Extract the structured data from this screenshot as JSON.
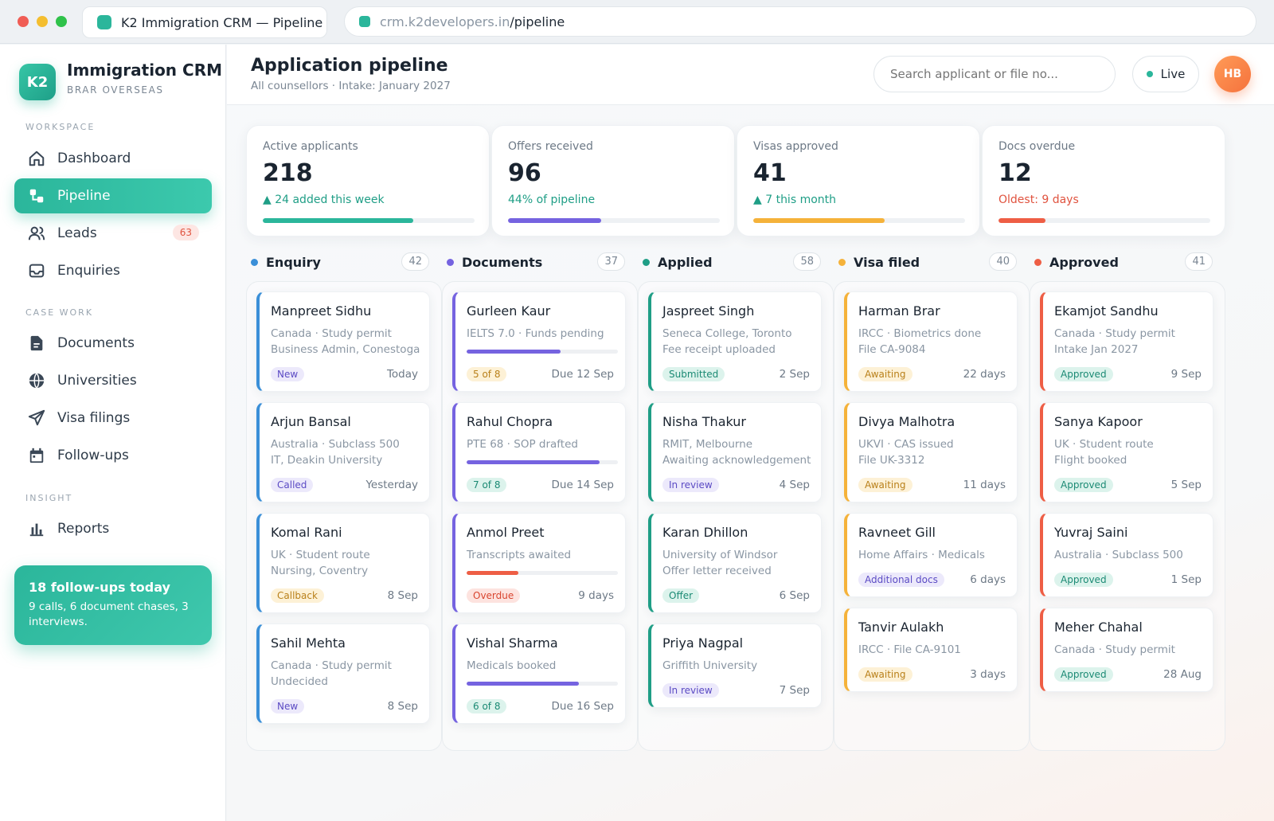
{
  "browser": {
    "tab_title": "K2 Immigration CRM — Pipeline",
    "url_host": "crm.k2developers.in",
    "url_path": "/pipeline"
  },
  "sidebar": {
    "logo": "K2",
    "brand": "Immigration CRM",
    "brand_sub": "BRAR OVERSEAS",
    "sections": {
      "workspace": "WORKSPACE",
      "case_work": "CASE WORK",
      "insight": "INSIGHT"
    },
    "items": [
      {
        "label": "Dashboard",
        "icon": "home-icon"
      },
      {
        "label": "Pipeline",
        "icon": "pipeline-icon",
        "active": true
      },
      {
        "label": "Leads",
        "icon": "users-icon",
        "badge": "63"
      },
      {
        "label": "Enquiries",
        "icon": "inbox-icon"
      },
      {
        "label": "Documents",
        "icon": "document-icon"
      },
      {
        "label": "Universities",
        "icon": "globe-icon"
      },
      {
        "label": "Visa filings",
        "icon": "send-icon"
      },
      {
        "label": "Follow-ups",
        "icon": "calendar-icon"
      },
      {
        "label": "Reports",
        "icon": "bar-chart-icon"
      }
    ],
    "promo": {
      "title": "18 follow-ups today",
      "text": "9 calls, 6 document chases, 3 interviews."
    }
  },
  "header": {
    "title": "Application pipeline",
    "subtitle": "All counsellors · Intake: January 2027",
    "search_placeholder": "Search applicant or file no...",
    "live_label": "Live",
    "avatar": "HB"
  },
  "stats": [
    {
      "label": "Active applicants",
      "value": "218",
      "note": "▲ 24 added this week",
      "note_color": "#1f9e86",
      "progress": 0.71,
      "color": "#2bb69b"
    },
    {
      "label": "Offers received",
      "value": "96",
      "note": "44% of pipeline",
      "note_color": "#1f9e86",
      "progress": 0.44,
      "color": "#7563e0"
    },
    {
      "label": "Visas approved",
      "value": "41",
      "note": "▲ 7 this month",
      "note_color": "#1f9e86",
      "progress": 0.62,
      "color": "#f5b23a"
    },
    {
      "label": "Docs overdue",
      "value": "12",
      "note": "Oldest: 9 days",
      "note_color": "#e0533f",
      "progress": 0.22,
      "color": "#ee5e45"
    }
  ],
  "columns": [
    {
      "name": "Enquiry",
      "count": "42",
      "color": "#3a8fd8",
      "cards": [
        {
          "name": "Manpreet Sidhu",
          "lines": [
            "Canada · Study permit",
            "Business Admin, Conestoga"
          ],
          "tag": "New",
          "tag_style": "purple",
          "meta": "Today"
        },
        {
          "name": "Arjun Bansal",
          "lines": [
            "Australia · Subclass 500",
            "IT, Deakin University"
          ],
          "tag": "Called",
          "tag_style": "purple",
          "meta": "Yesterday"
        },
        {
          "name": "Komal Rani",
          "lines": [
            "UK · Student route",
            "Nursing, Coventry"
          ],
          "tag": "Callback",
          "tag_style": "amber",
          "meta": "8 Sep"
        },
        {
          "name": "Sahil Mehta",
          "lines": [
            "Canada · Study permit",
            "Undecided"
          ],
          "tag": "New",
          "tag_style": "purple",
          "meta": "8 Sep"
        }
      ]
    },
    {
      "name": "Documents",
      "count": "37",
      "color": "#7563e0",
      "cards": [
        {
          "name": "Gurleen Kaur",
          "lines": [
            "IELTS 7.0 · Funds pending"
          ],
          "progress": 0.62,
          "progress_color": "#7563e0",
          "tag": "5 of 8",
          "tag_style": "amber",
          "meta": "Due 12 Sep"
        },
        {
          "name": "Rahul Chopra",
          "lines": [
            "PTE 68 · SOP drafted"
          ],
          "progress": 0.88,
          "progress_color": "#7563e0",
          "tag": "7 of 8",
          "tag_style": "green",
          "meta": "Due 14 Sep"
        },
        {
          "name": "Anmol Preet",
          "lines": [
            "Transcripts awaited"
          ],
          "progress": 0.34,
          "progress_color": "#ee5e45",
          "tag": "Overdue",
          "tag_style": "red",
          "meta": "9 days"
        },
        {
          "name": "Vishal Sharma",
          "lines": [
            "Medicals booked"
          ],
          "progress": 0.74,
          "progress_color": "#7563e0",
          "tag": "6 of 8",
          "tag_style": "green",
          "meta": "Due 16 Sep"
        }
      ]
    },
    {
      "name": "Applied",
      "count": "58",
      "color": "#1f9e86",
      "cards": [
        {
          "name": "Jaspreet Singh",
          "lines": [
            "Seneca College, Toronto",
            "Fee receipt uploaded"
          ],
          "tag": "Submitted",
          "tag_style": "green",
          "meta": "2 Sep"
        },
        {
          "name": "Nisha Thakur",
          "lines": [
            "RMIT, Melbourne",
            "Awaiting acknowledgement"
          ],
          "tag": "In review",
          "tag_style": "purple",
          "meta": "4 Sep"
        },
        {
          "name": "Karan Dhillon",
          "lines": [
            "University of Windsor",
            "Offer letter received"
          ],
          "tag": "Offer",
          "tag_style": "green",
          "meta": "6 Sep"
        },
        {
          "name": "Priya Nagpal",
          "lines": [
            "Griffith University"
          ],
          "tag": "In review",
          "tag_style": "purple",
          "meta": "7 Sep"
        }
      ]
    },
    {
      "name": "Visa filed",
      "count": "40",
      "color": "#f5b23a",
      "cards": [
        {
          "name": "Harman Brar",
          "lines": [
            "IRCC · Biometrics done",
            "File CA-9084"
          ],
          "tag": "Awaiting",
          "tag_style": "amber",
          "meta": "22 days"
        },
        {
          "name": "Divya Malhotra",
          "lines": [
            "UKVI · CAS issued",
            "File UK-3312"
          ],
          "tag": "Awaiting",
          "tag_style": "amber",
          "meta": "11 days"
        },
        {
          "name": "Ravneet Gill",
          "lines": [
            "Home Affairs · Medicals"
          ],
          "tag": "Additional docs",
          "tag_style": "purple",
          "meta": "6 days"
        },
        {
          "name": "Tanvir Aulakh",
          "lines": [
            "IRCC · File CA-9101"
          ],
          "tag": "Awaiting",
          "tag_style": "amber",
          "meta": "3 days"
        }
      ]
    },
    {
      "name": "Approved",
      "count": "41",
      "color": "#ee5e45",
      "cards": [
        {
          "name": "Ekamjot Sandhu",
          "lines": [
            "Canada · Study permit",
            "Intake Jan 2027"
          ],
          "tag": "Approved",
          "tag_style": "green",
          "meta": "9 Sep"
        },
        {
          "name": "Sanya Kapoor",
          "lines": [
            "UK · Student route",
            "Flight booked"
          ],
          "tag": "Approved",
          "tag_style": "green",
          "meta": "5 Sep"
        },
        {
          "name": "Yuvraj Saini",
          "lines": [
            "Australia · Subclass 500"
          ],
          "tag": "Approved",
          "tag_style": "green",
          "meta": "1 Sep"
        },
        {
          "name": "Meher Chahal",
          "lines": [
            "Canada · Study permit"
          ],
          "tag": "Approved",
          "tag_style": "green",
          "meta": "28 Aug"
        }
      ]
    }
  ]
}
